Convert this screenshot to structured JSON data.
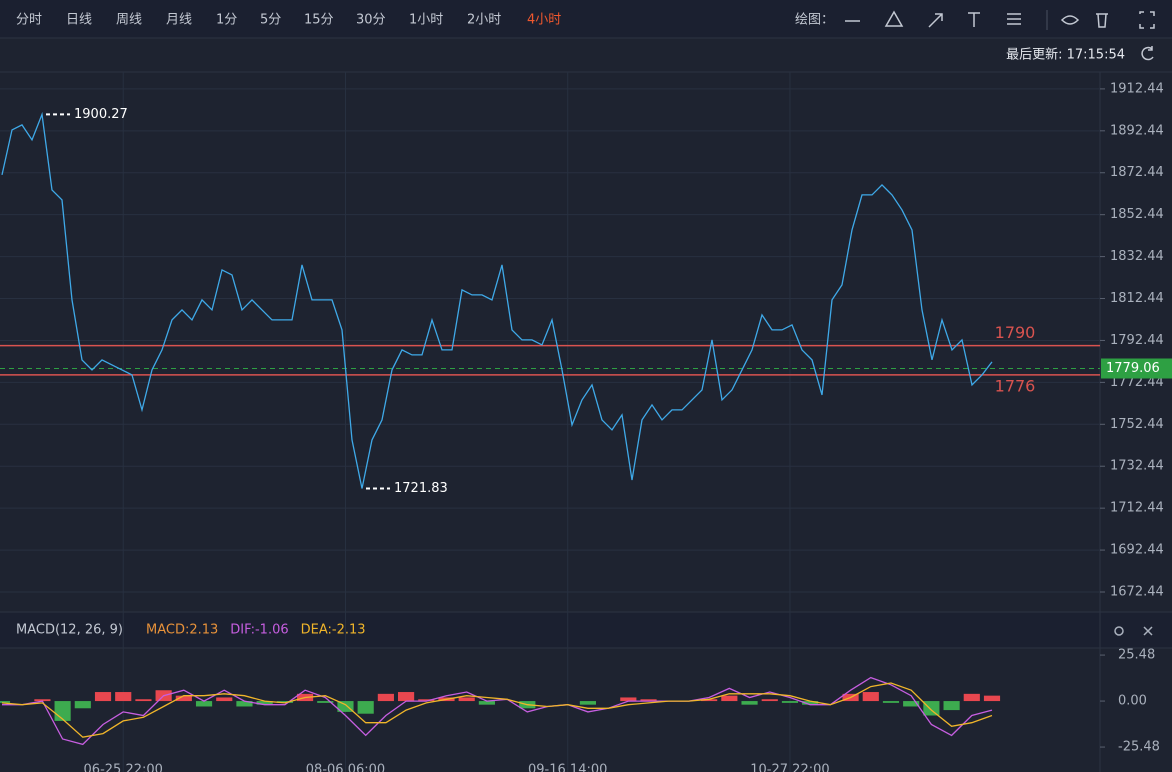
{
  "toolbar": {
    "periods": [
      "分时",
      "日线",
      "周线",
      "月线",
      "1分",
      "5分",
      "15分",
      "30分",
      "1小时",
      "2小时",
      "4小时"
    ],
    "active_period": "4小时",
    "draw_label": "绘图：",
    "active_color": "#f0582e"
  },
  "last_update": "最后更新: 17:15:54",
  "chart_data": [
    {
      "type": "line",
      "series": [
        {
          "color": "#3fa9e8",
          "values": [
            1871.41,
            1892.88,
            1895.26,
            1888.11,
            1900.27,
            1864.25,
            1859.48,
            1811.77,
            1783.15,
            1778.37,
            1783.15,
            1780.76,
            1778.37,
            1775.99,
            1759.29,
            1778.37,
            1787.92,
            1802.23,
            1807.0,
            1802.23,
            1811.77,
            1807.0,
            1826.08,
            1823.7,
            1807.0,
            1811.77,
            1807.0,
            1802.23,
            1802.23,
            1802.23,
            1828.47,
            1811.77,
            1811.77,
            1811.77,
            1797.46,
            1744.98,
            1721.83,
            1744.98,
            1754.52,
            1778.37,
            1787.92,
            1785.53,
            1785.53,
            1802.23,
            1787.92,
            1787.92,
            1816.54,
            1814.16,
            1814.16,
            1811.77,
            1828.47,
            1797.46,
            1792.69,
            1792.69,
            1790.3,
            1802.23,
            1778.37,
            1752.13,
            1764.06,
            1771.22,
            1754.52,
            1749.75,
            1756.91,
            1725.89,
            1754.52,
            1761.68,
            1754.52,
            1759.29,
            1759.29,
            1764.06,
            1768.83,
            1792.69,
            1764.06,
            1768.83,
            1778.37,
            1787.92,
            1804.62,
            1797.46,
            1797.46,
            1799.84,
            1787.92,
            1783.15,
            1766.45,
            1811.77,
            1818.93,
            1845.17,
            1861.87,
            1861.87,
            1866.64,
            1861.87,
            1854.71,
            1845.17,
            1807.0,
            1783.15,
            1802.23,
            1787.92,
            1792.69,
            1771.22,
            1775.99,
            1782.19
          ]
        }
      ],
      "ylim": [
        1662.9,
        1920.5
      ],
      "yticks": [
        1672.44,
        1692.44,
        1712.44,
        1732.44,
        1752.44,
        1772.44,
        1792.44,
        1812.44,
        1832.44,
        1852.44,
        1872.44,
        1892.44,
        1912.44
      ],
      "grid": true,
      "hlines": [
        1790,
        1776
      ],
      "hline_color": "#d9534f",
      "last": 1779.06,
      "last_color": "#2ea043"
    },
    {
      "type": "macd",
      "title": "MACD(12, 26, 9)",
      "legend": [
        {
          "label": "MACD:2.13",
          "color": "#e8923a"
        },
        {
          "label": "DIF:-1.06",
          "color": "#c65ee0"
        },
        {
          "label": "DEA:-2.13",
          "color": "#f0b52a"
        }
      ],
      "categories": [
        null,
        null,
        null,
        null,
        null,
        null,
        "06-25 22:00",
        null,
        null,
        null,
        null,
        null,
        null,
        null,
        null,
        null,
        null,
        "08-06 06:00",
        null,
        null,
        null,
        null,
        null,
        null,
        null,
        null,
        null,
        null,
        "09-16 14:00",
        null,
        null,
        null,
        null,
        null,
        null,
        null,
        null,
        null,
        null,
        "10-27 22:00",
        null,
        null,
        null,
        null,
        null,
        null,
        null,
        null,
        null,
        null
      ],
      "histogram": [
        -1,
        0,
        1,
        -11,
        -4,
        5,
        5,
        1,
        6,
        3,
        -3,
        2,
        -3,
        -2,
        -1,
        4,
        -1,
        -6,
        -7,
        4,
        5,
        1,
        2,
        2,
        -2,
        0,
        -4,
        0,
        0,
        -2,
        0,
        2,
        1,
        0,
        0,
        1,
        3,
        -2,
        1,
        -1,
        -2,
        0,
        4,
        5,
        -1,
        -3,
        -8,
        -5,
        4,
        3
      ],
      "up_color": "#e8474f",
      "down_color": "#3dab4f",
      "series": [
        {
          "color": "#c65ee0",
          "values": [
            -2,
            -2,
            0,
            -21,
            -24,
            -13,
            -6,
            -8,
            3,
            6,
            0,
            6,
            0,
            -2,
            -2,
            6,
            2,
            -8,
            -19,
            -8,
            0,
            0,
            3,
            5,
            0,
            1,
            -6,
            -3,
            -2,
            -6,
            -4,
            0,
            0,
            0,
            0,
            2,
            7,
            2,
            5,
            2,
            -2,
            -2,
            6,
            13,
            9,
            3,
            -13,
            -19,
            -8,
            -5
          ]
        },
        {
          "color": "#f0b52a",
          "values": [
            -1,
            -2,
            -1,
            -10,
            -20,
            -18,
            -11,
            -9,
            -3,
            3,
            3,
            4,
            3,
            0,
            -1,
            2,
            3,
            -2,
            -12,
            -12,
            -5,
            -1,
            1,
            3,
            2,
            1,
            -2,
            -3,
            -2,
            -4,
            -4,
            -2,
            -1,
            0,
            0,
            1,
            4,
            4,
            4,
            3,
            0,
            -2,
            2,
            8,
            10,
            6,
            -5,
            -14,
            -12,
            -8
          ]
        }
      ],
      "ylim": [
        -39.3,
        29.4
      ],
      "yticks": [
        25.48,
        {
          "value": 0,
          "label": "0.00"
        },
        -25.48
      ]
    }
  ]
}
